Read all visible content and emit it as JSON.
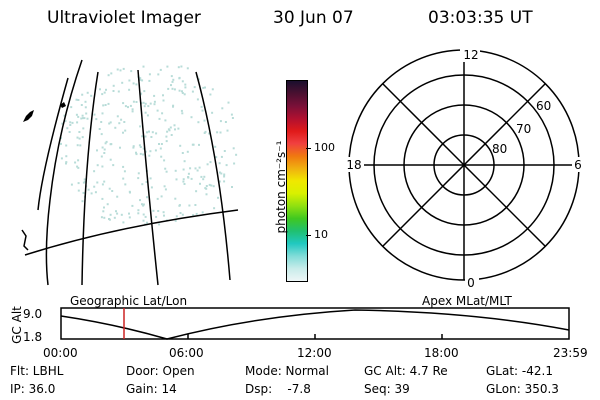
{
  "header": {
    "title": "Ultraviolet Imager",
    "date": "30 Jun 07",
    "time": "03:03:35 UT"
  },
  "colorbar": {
    "unit_label": "photon cm⁻²s⁻¹",
    "ticks": [
      "100",
      "10"
    ],
    "colors": [
      "#1a0f2e",
      "#4b1030",
      "#7a1038",
      "#b01030",
      "#e01a1a",
      "#f04040",
      "#f07810",
      "#f0b010",
      "#f0e800",
      "#d8f000",
      "#90e010",
      "#40c820",
      "#20c070",
      "#20c8c0",
      "#80dcd8",
      "#c8ecea",
      "#eef6f6"
    ]
  },
  "polar": {
    "top": "12",
    "left": "18",
    "right": "6",
    "bottom": "0",
    "rings": [
      "60",
      "70",
      "80"
    ]
  },
  "timeline": {
    "ylabel": "GC Alt",
    "ymax": "9.0",
    "ymin": "1.8",
    "left_label": "Geographic Lat/Lon",
    "right_label": "Apex MLat/MLT",
    "times": [
      "00:00",
      "06:00",
      "12:00",
      "18:00",
      "23:59"
    ],
    "marker_color": "#cc2222"
  },
  "info": {
    "flt": "Flt: LBHL",
    "ip": "IP: 36.0",
    "door": "Door: Open",
    "gain": "Gain: 14",
    "mode": "Mode: Normal",
    "dsp": "Dsp:    -7.8",
    "gcalt": "GC Alt: 4.7 Re",
    "seq": "Seq: 39",
    "glat": "GLat: -42.1",
    "glon": "GLon: 350.3"
  }
}
